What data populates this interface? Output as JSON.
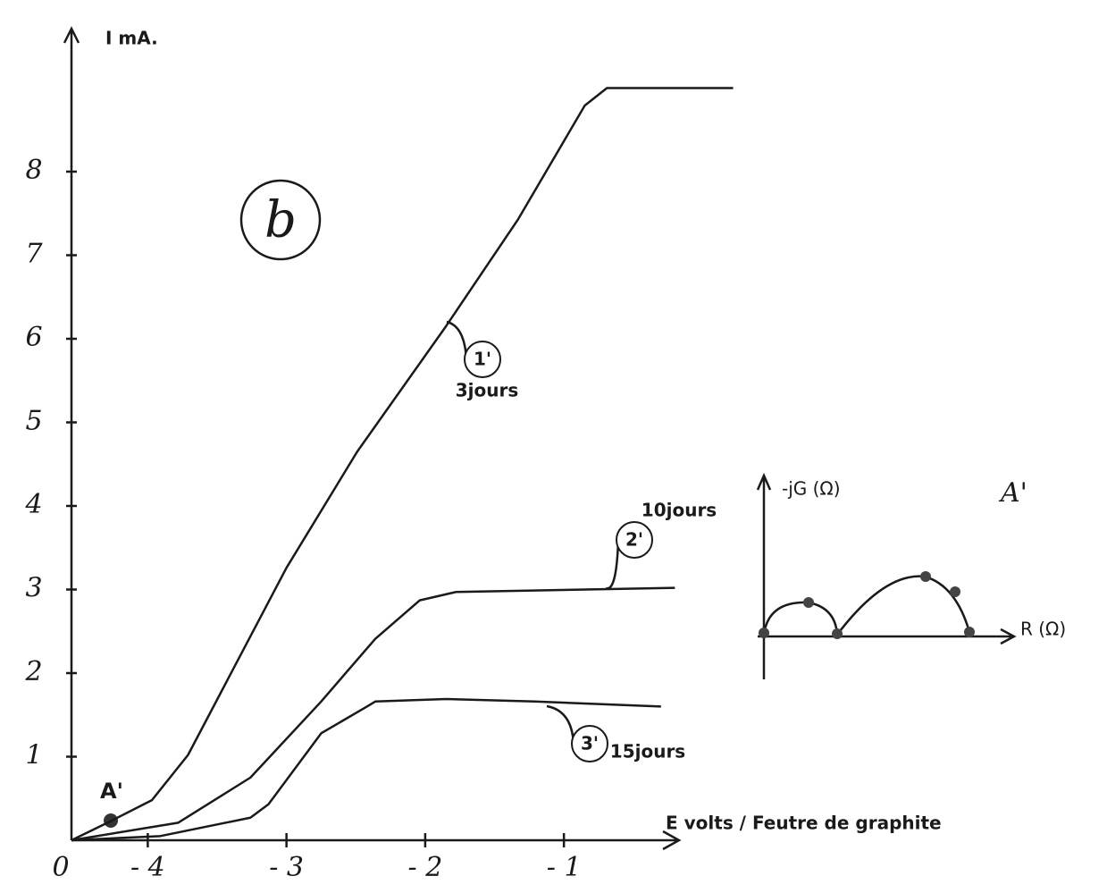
{
  "chart_data": {
    "type": "line",
    "y_label": "I mA.",
    "x_label": "E volts / Feutre de graphite",
    "origin_label": "0",
    "panel_label": "b",
    "point_label": "A'",
    "xlim": [
      -4.55,
      0.3
    ],
    "ylim": [
      0,
      9.7
    ],
    "xticks": [
      {
        "value": -4,
        "label": "- 4"
      },
      {
        "value": -3,
        "label": "- 3"
      },
      {
        "value": -2,
        "label": "- 2"
      },
      {
        "value": -1,
        "label": "- 1"
      }
    ],
    "yticks": [
      1,
      2,
      3,
      4,
      5,
      6,
      7,
      8
    ],
    "color": "#1a1a1a",
    "series": [
      {
        "name": "1'",
        "sublabel": "3jours",
        "x": [
          -4.55,
          -4.29,
          -3.97,
          -3.71,
          -3.39,
          -3.0,
          -2.49,
          -1.85,
          -1.33,
          -0.85,
          -0.69,
          0.22
        ],
        "values": [
          0,
          0.21,
          0.48,
          1.02,
          2.03,
          3.26,
          4.65,
          6.15,
          7.43,
          8.79,
          9.0,
          9.0
        ]
      },
      {
        "name": "2'",
        "sublabel": "10jours",
        "x": [
          -4.55,
          -3.78,
          -3.26,
          -2.75,
          -2.36,
          -2.04,
          -1.78,
          -0.2
        ],
        "values": [
          0,
          0.21,
          0.75,
          1.66,
          2.41,
          2.87,
          2.97,
          3.02
        ]
      },
      {
        "name": "3'",
        "sublabel": "15jours",
        "x": [
          -4.55,
          -3.91,
          -3.26,
          -3.13,
          -2.75,
          -2.42,
          -2.36,
          -1.85,
          -1.21,
          -0.3
        ],
        "values": [
          0,
          0.05,
          0.27,
          0.43,
          1.28,
          1.6,
          1.66,
          1.69,
          1.66,
          1.6
        ]
      }
    ],
    "inset": {
      "y_label": "-jG (Ω)",
      "x_label": "R (Ω)",
      "title": "A'"
    }
  }
}
